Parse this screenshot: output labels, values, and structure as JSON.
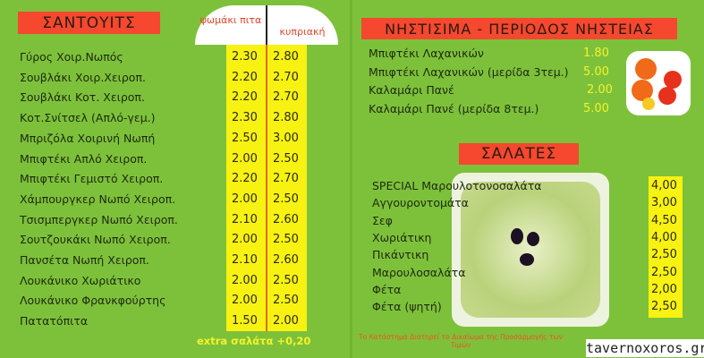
{
  "sandwiches": {
    "title": "ΣΑΝΤΟΥΙΤΣ",
    "col1": "ψωμάκι πιτα",
    "col2": "κυπριακή",
    "items": [
      {
        "name": "Γύρος Χοιρ.Νωπός",
        "pita": "2.30",
        "cyprus": "2.80"
      },
      {
        "name": "Σουβλάκι Χοιρ.Χειροπ.",
        "pita": "2.20",
        "cyprus": "2.70"
      },
      {
        "name": "Σουβλάκι Κοτ. Χειροπ.",
        "pita": "2.20",
        "cyprus": "2.70"
      },
      {
        "name": "Κοτ.Σνίτσελ (Απλό-γεμ.)",
        "pita": "2.30",
        "cyprus": "2.80"
      },
      {
        "name": "Μπριζόλα Χοιρινή Νωπή",
        "pita": "2.50",
        "cyprus": "3.00"
      },
      {
        "name": "Μπιφτέκι Απλό Χειροπ.",
        "pita": "2.00",
        "cyprus": "2.50"
      },
      {
        "name": "Μπιφτέκι Γεμιστό Χειροπ.",
        "pita": "2.20",
        "cyprus": "2.70"
      },
      {
        "name": "Χάμπουργκερ Νωπό Χειροπ.",
        "pita": "2.00",
        "cyprus": "2.50"
      },
      {
        "name": "Τσισμπεργκερ Νωπό Χειροπ.",
        "pita": "2.10",
        "cyprus": "2.60"
      },
      {
        "name": "Σουτζουκάκι Νωπό Χειροπ.",
        "pita": "2.00",
        "cyprus": "2.50"
      },
      {
        "name": "Πανσέτα Νωπή Χειροπ.",
        "pita": "2.10",
        "cyprus": "2.60"
      },
      {
        "name": "Λουκάνικο Χωριάτικο",
        "pita": "2.00",
        "cyprus": "2.50"
      },
      {
        "name": "Λουκάνικο Φρανκφούρτης",
        "pita": "2.00",
        "cyprus": "2.50"
      },
      {
        "name": "Πατατόπιτα",
        "pita": "1.50",
        "cyprus": "2.00"
      }
    ],
    "extra": "extra σαλάτα +0,20"
  },
  "fasting": {
    "title": "ΝΗΣΤΙΣΙΜΑ - ΠΕΡΙΟΔΟΣ ΝΗΣΤΕΙΑΣ",
    "items": [
      {
        "name": "Μπιφτέκι Λαχανικών",
        "price": "1.80"
      },
      {
        "name": "Μπιφτέκι Λαχανικών (μερίδα 3τεμ.)",
        "price": "5.00"
      },
      {
        "name": "Καλαμάρι Πανέ",
        "price": "2.00"
      },
      {
        "name": "Καλαμάρι Πανέ (μερίδα 8τεμ.)",
        "price": "5.00"
      }
    ]
  },
  "salads": {
    "title": "ΣΑΛΑΤΕΣ",
    "items": [
      {
        "name": "SPECIAL Μαρουλοτονοσαλάτα",
        "price": "4,00"
      },
      {
        "name": "Αγγουροντομάτα",
        "price": "3,00"
      },
      {
        "name": "Σεφ",
        "price": "4,50"
      },
      {
        "name": "Χωριάτικη",
        "price": "4,00"
      },
      {
        "name": "Πικάντικη",
        "price": "2,50"
      },
      {
        "name": "Μαρουλοσαλάτα",
        "price": "2,50"
      },
      {
        "name": "Φέτα",
        "price": "2,00"
      },
      {
        "name": "Φέτα (ψητή)",
        "price": "2,50"
      }
    ]
  },
  "footer": "Το Κατάστημα Διατηρεί το Δικαίωμα της Προσαρμογής των Τιμών",
  "watermark": "tavernoxoros.gr"
}
